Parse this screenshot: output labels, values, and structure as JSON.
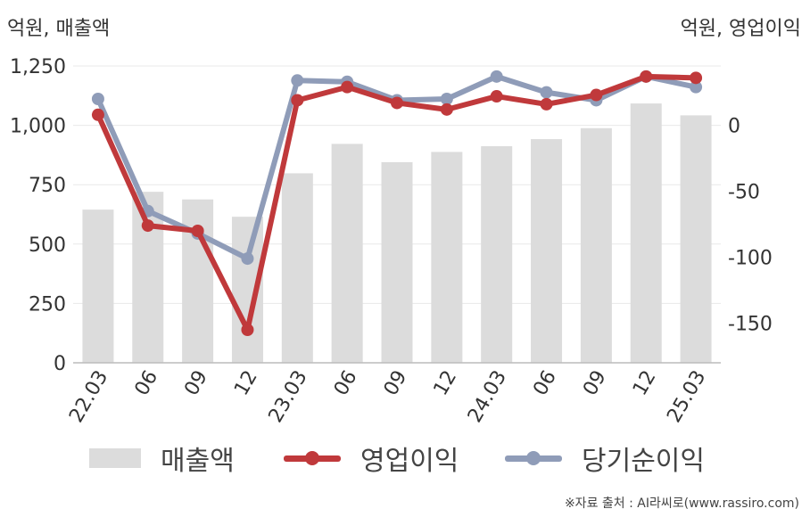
{
  "units": {
    "left": "억원, 매출액",
    "right": "억원, 영업이익"
  },
  "source": "※자료 출처 : AI라씨로(www.rassiro.com)",
  "legend": [
    {
      "label": "매출액",
      "kind": "bar",
      "color": "#dcdcdc"
    },
    {
      "label": "영업이익",
      "kind": "line",
      "color": "#c0393b"
    },
    {
      "label": "당기순이익",
      "kind": "line",
      "color": "#8f9cb8"
    }
  ],
  "chart_data": {
    "type": "bar",
    "categories": [
      "22.03",
      "06",
      "09",
      "12",
      "23.03",
      "06",
      "09",
      "12",
      "24.03",
      "06",
      "09",
      "12",
      "25.03"
    ],
    "series": [
      {
        "name": "매출액",
        "type": "bar",
        "axis": "left",
        "color": "#dcdcdc",
        "values": [
          645,
          720,
          688,
          615,
          798,
          922,
          845,
          888,
          912,
          942,
          988,
          1092,
          1042
        ]
      },
      {
        "name": "영업이익",
        "type": "line",
        "axis": "right",
        "color": "#c0393b",
        "values": [
          8,
          -76,
          -80,
          -155,
          19,
          29,
          17,
          12,
          22,
          16,
          23,
          37,
          36
        ]
      },
      {
        "name": "당기순이익",
        "type": "line",
        "axis": "right",
        "color": "#8f9cb8",
        "values": [
          20,
          -65,
          -82,
          -101,
          34,
          33,
          19,
          20,
          37,
          25,
          19,
          37,
          29
        ]
      }
    ],
    "y_left": {
      "min": 0,
      "max": 1250,
      "ticks": [
        0,
        250,
        500,
        750,
        "1,000",
        "1,250"
      ]
    },
    "y_right": {
      "min": -180,
      "max": 45,
      "ticks": [
        0,
        -50,
        -100,
        -150
      ]
    },
    "grid": true,
    "legend_position": "bottom"
  }
}
